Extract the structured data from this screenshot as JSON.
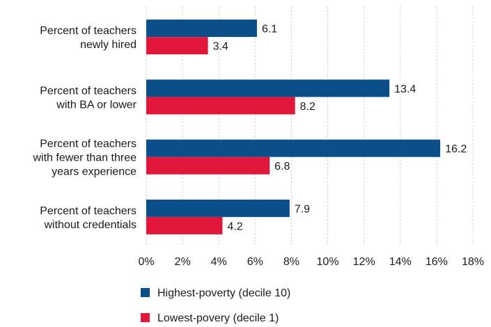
{
  "chart_data": {
    "type": "bar",
    "orientation": "horizontal",
    "categories": [
      [
        "Percent of teachers",
        "newly hired"
      ],
      [
        "Percent of teachers",
        "with BA or lower"
      ],
      [
        "Percent of teachers",
        "with fewer than three",
        "years experience"
      ],
      [
        "Percent of teachers",
        "without credentials"
      ]
    ],
    "series": [
      {
        "name": "Highest-poverty (decile 10)",
        "color": "#0b4f8a",
        "values": [
          6.1,
          13.4,
          16.2,
          7.9
        ]
      },
      {
        "name": "Lowest-povery (decile 1)",
        "color": "#e0163a",
        "values": [
          3.4,
          8.2,
          6.8,
          4.2
        ]
      }
    ],
    "value_labels": [
      [
        "6.1",
        "13.4",
        "16.2",
        "7.9"
      ],
      [
        "3.4",
        "8.2",
        "6.8",
        "4.2"
      ]
    ],
    "xlim": [
      0,
      18
    ],
    "xticks": [
      "0%",
      "2%",
      "4%",
      "6%",
      "8%",
      "10%",
      "12%",
      "14%",
      "16%",
      "18%"
    ],
    "grid": true,
    "legend_position": "bottom-left"
  }
}
